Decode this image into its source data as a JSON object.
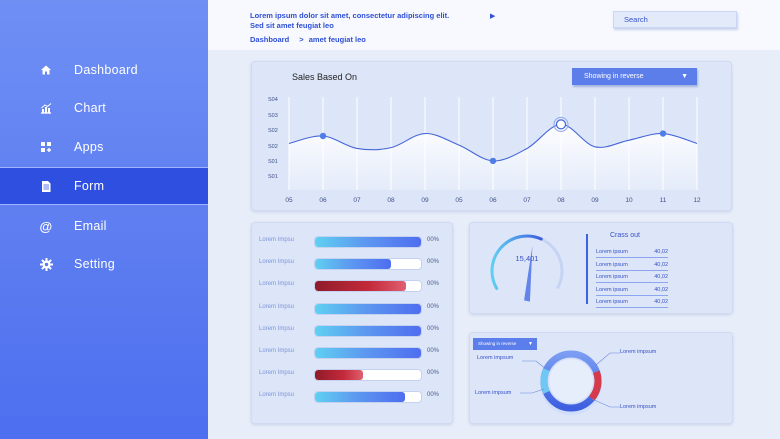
{
  "sidebar": {
    "items": [
      {
        "label": "Dashboard",
        "icon": "home-icon"
      },
      {
        "label": "Chart",
        "icon": "chart-icon"
      },
      {
        "label": "Apps",
        "icon": "apps-icon"
      },
      {
        "label": "Form",
        "icon": "form-icon",
        "active": true
      },
      {
        "label": "Email",
        "icon": "at-icon"
      },
      {
        "label": "Setting",
        "icon": "gear-icon"
      }
    ]
  },
  "header": {
    "line1": "Lorem ipsum dolor sit amet, consectetur adipiscing elit.",
    "line2": "Sed sit amet feugiat leo",
    "breadcrumb": [
      "Dashboard",
      "amet feugiat leo"
    ],
    "breadcrumb_sep": ">",
    "search_label": "Search"
  },
  "line_panel": {
    "title": "Sales Based On",
    "dropdown": "Showing in reverse"
  },
  "bars_panel": {
    "rows": [
      {
        "label": "Lorem Impsu",
        "value": 1.0,
        "pct": "00%",
        "color": "blue"
      },
      {
        "label": "Lorem Impsu",
        "value": 0.72,
        "pct": "00%",
        "color": "blue"
      },
      {
        "label": "Lorem Impsu",
        "value": 0.86,
        "pct": "00%",
        "color": "red"
      },
      {
        "label": "Lorem Impsu",
        "value": 1.0,
        "pct": "00%",
        "color": "blue"
      },
      {
        "label": "Lorem Impsu",
        "value": 1.0,
        "pct": "00%",
        "color": "blue"
      },
      {
        "label": "Lorem Impsu",
        "value": 1.0,
        "pct": "00%",
        "color": "blue"
      },
      {
        "label": "Lorem Impsu",
        "value": 0.45,
        "pct": "00%",
        "color": "red"
      },
      {
        "label": "Lorem Impsu",
        "value": 0.85,
        "pct": "00%",
        "color": "blue"
      }
    ]
  },
  "gauge_panel": {
    "value_label": "15,401",
    "level": 0.6,
    "title": "Crass out",
    "rows": [
      {
        "label": "Lorem ipsum",
        "value": "40,02"
      },
      {
        "label": "Lorem ipsum",
        "value": "40,02"
      },
      {
        "label": "Lorem ipsum",
        "value": "40,02"
      },
      {
        "label": "Lorem ipsum",
        "value": "40,02"
      },
      {
        "label": "Lorem ipsum",
        "value": "40,02"
      }
    ]
  },
  "donut_panel": {
    "dropdown": "Showing in reverse",
    "labels": [
      "Lorem impsum",
      "Lorem impsum",
      "Lorem impsum",
      "Lorem impsum"
    ]
  },
  "colors": {
    "accent": "#3d63e0",
    "sidebar_active": "#2f4fe0",
    "bar_blue": "#4f6df0",
    "bar_cyan": "#5fd0f2",
    "bar_red": "#c42a3a"
  },
  "chart_data": {
    "type": "line",
    "title": "Sales Based On",
    "categories": [
      "05",
      "06",
      "07",
      "08",
      "09",
      "05",
      "06",
      "07",
      "08",
      "09",
      "10",
      "11",
      "12"
    ],
    "y_ticks": [
      "S01",
      "S01",
      "S02",
      "S02",
      "S03",
      "S04"
    ],
    "ylim": [
      0,
      5
    ],
    "series": [
      {
        "values": [
          2.2,
          2.65,
          1.9,
          1.95,
          2.8,
          2.1,
          1.15,
          1.9,
          3.35,
          2.0,
          2.4,
          2.8,
          2.2
        ],
        "markers": [
          1,
          6,
          8,
          11
        ]
      }
    ],
    "highlight_index": 8,
    "grid": true
  }
}
